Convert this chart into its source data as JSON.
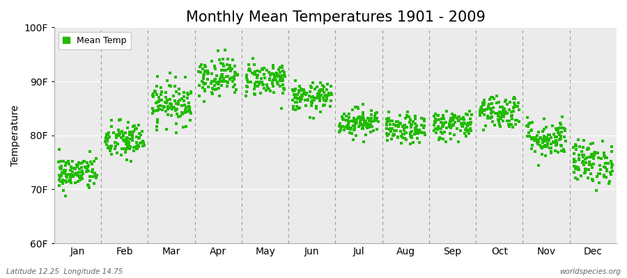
{
  "title": "Monthly Mean Temperatures 1901 - 2009",
  "ylabel": "Temperature",
  "xlabel_bottom": "Latitude 12.25  Longitude 14.75",
  "xlabel_right": "worldspecies.org",
  "legend_label": "Mean Temp",
  "dot_color": "#22bb00",
  "background_color": "#ffffff",
  "plot_bg_color": "#ebebeb",
  "ylim": [
    60,
    100
  ],
  "yticks": [
    60,
    70,
    80,
    90,
    100
  ],
  "ytick_labels": [
    "60F",
    "70F",
    "80F",
    "90F",
    "100F"
  ],
  "months": [
    "Jan",
    "Feb",
    "Mar",
    "Apr",
    "May",
    "Jun",
    "Jul",
    "Aug",
    "Sep",
    "Oct",
    "Nov",
    "Dec"
  ],
  "month_means": [
    73.0,
    79.0,
    86.0,
    91.0,
    90.5,
    87.0,
    82.5,
    81.0,
    82.0,
    84.5,
    79.5,
    75.0
  ],
  "month_stds": [
    1.6,
    1.8,
    2.0,
    1.8,
    1.6,
    1.3,
    1.3,
    1.3,
    1.4,
    1.6,
    1.8,
    2.0
  ],
  "n_years": 109,
  "marker_size": 5,
  "title_fontsize": 15,
  "axis_fontsize": 10,
  "tick_fontsize": 10,
  "legend_fontsize": 9,
  "dpi": 100,
  "figsize": [
    9.0,
    4.0
  ]
}
